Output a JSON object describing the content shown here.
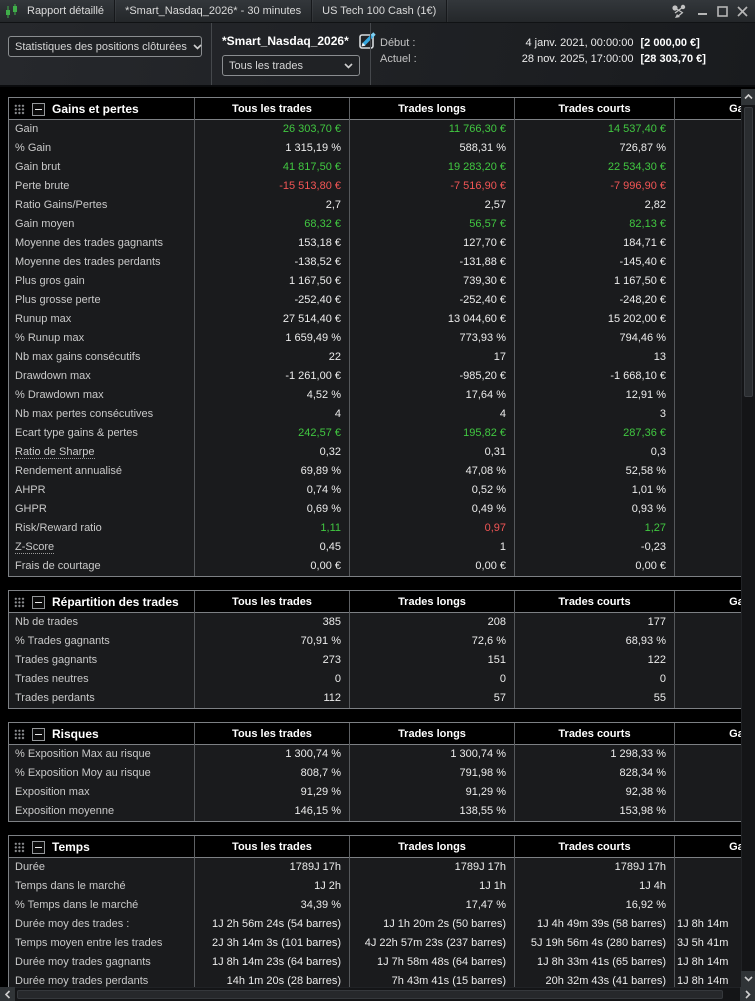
{
  "titlebar": {
    "tabs": [
      "Rapport détaillé",
      "*Smart_Nasdaq_2026* - 30 minutes",
      "US Tech 100 Cash (1€)"
    ]
  },
  "toolbar": {
    "stats_dropdown": "Statistiques des positions clôturées",
    "strategy_name": "*Smart_Nasdaq_2026*",
    "trades_dropdown": "Tous les trades",
    "start_label": "Début :",
    "start_date": "4 janv. 2021, 00:00:00",
    "start_equity": "[2 000,00 €]",
    "current_label": "Actuel :",
    "current_date": "28 nov. 2025, 17:00:00",
    "current_equity": "[28 303,70 €]"
  },
  "colors": {
    "positive": "#41c841",
    "negative": "#f25555",
    "accent_blue": "#35a8e0"
  },
  "columns": [
    "Tous les trades",
    "Trades longs",
    "Trades courts",
    "Gagnants"
  ],
  "tables": [
    {
      "title": "Gains et pertes",
      "rows": [
        {
          "label": "Gain",
          "cells": [
            {
              "t": "26 303,70 €",
              "c": "pos"
            },
            {
              "t": "11 766,30 €",
              "c": "pos"
            },
            {
              "t": "14 537,40 €",
              "c": "pos"
            },
            ""
          ]
        },
        {
          "label": "% Gain",
          "cells": [
            "1 315,19 %",
            "588,31 %",
            "726,87 %",
            ""
          ]
        },
        {
          "label": "Gain brut",
          "cells": [
            {
              "t": "41 817,50 €",
              "c": "pos"
            },
            {
              "t": "19 283,20 €",
              "c": "pos"
            },
            {
              "t": "22 534,30 €",
              "c": "pos"
            },
            ""
          ]
        },
        {
          "label": "Perte brute",
          "cells": [
            {
              "t": "-15 513,80 €",
              "c": "neg"
            },
            {
              "t": "-7 516,90 €",
              "c": "neg"
            },
            {
              "t": "-7 996,90 €",
              "c": "neg"
            },
            ""
          ]
        },
        {
          "label": "Ratio Gains/Pertes",
          "cells": [
            "2,7",
            "2,57",
            "2,82",
            ""
          ]
        },
        {
          "label": "Gain moyen",
          "cells": [
            {
              "t": "68,32 €",
              "c": "pos"
            },
            {
              "t": "56,57 €",
              "c": "pos"
            },
            {
              "t": "82,13 €",
              "c": "pos"
            },
            ""
          ]
        },
        {
          "label": "Moyenne des trades gagnants",
          "cells": [
            "153,18 €",
            "127,70 €",
            "184,71 €",
            ""
          ]
        },
        {
          "label": "Moyenne des trades perdants",
          "cells": [
            "-138,52 €",
            "-131,88 €",
            "-145,40 €",
            ""
          ]
        },
        {
          "label": "Plus gros gain",
          "cells": [
            "1 167,50 €",
            "739,30 €",
            "1 167,50 €",
            ""
          ]
        },
        {
          "label": "Plus grosse perte",
          "cells": [
            "-252,40 €",
            "-252,40 €",
            "-248,20 €",
            ""
          ]
        },
        {
          "label": "Runup max",
          "cells": [
            "27 514,40 €",
            "13 044,60 €",
            "15 202,00 €",
            ""
          ]
        },
        {
          "label": "% Runup max",
          "cells": [
            "1 659,49 %",
            "773,93 %",
            "794,46 %",
            ""
          ]
        },
        {
          "label": "Nb max gains consécutifs",
          "cells": [
            "22",
            "17",
            "13",
            ""
          ]
        },
        {
          "label": "Drawdown max",
          "cells": [
            "-1 261,00 €",
            "-985,20 €",
            "-1 668,10 €",
            ""
          ]
        },
        {
          "label": "% Drawdown max",
          "cells": [
            "4,52 %",
            "17,64 %",
            "12,91 %",
            ""
          ]
        },
        {
          "label": "Nb max pertes consécutives",
          "cells": [
            "4",
            "4",
            "3",
            ""
          ]
        },
        {
          "label": "Ecart type gains & pertes",
          "cells": [
            {
              "t": "242,57 €",
              "c": "pos"
            },
            {
              "t": "195,82 €",
              "c": "pos"
            },
            {
              "t": "287,36 €",
              "c": "pos"
            },
            ""
          ]
        },
        {
          "label": "Ratio de Sharpe",
          "u": true,
          "cells": [
            "0,32",
            "0,31",
            "0,3",
            ""
          ]
        },
        {
          "label": "Rendement annualisé",
          "cells": [
            "69,89 %",
            "47,08 %",
            "52,58 %",
            ""
          ]
        },
        {
          "label": "AHPR",
          "cells": [
            "0,74 %",
            "0,52 %",
            "1,01 %",
            ""
          ]
        },
        {
          "label": "GHPR",
          "cells": [
            "0,69 %",
            "0,49 %",
            "0,93 %",
            ""
          ]
        },
        {
          "label": "Risk/Reward ratio",
          "cells": [
            {
              "t": "1,11",
              "c": "pos"
            },
            {
              "t": "0,97",
              "c": "neg"
            },
            {
              "t": "1,27",
              "c": "pos"
            },
            ""
          ]
        },
        {
          "label": "Z-Score",
          "u": true,
          "cells": [
            "0,45",
            "1",
            "-0,23",
            ""
          ]
        },
        {
          "label": "Frais de courtage",
          "cells": [
            "0,00 €",
            "0,00 €",
            "0,00 €",
            ""
          ]
        }
      ]
    },
    {
      "title": "Répartition des trades",
      "rows": [
        {
          "label": "Nb de trades",
          "cells": [
            "385",
            "208",
            "177",
            ""
          ]
        },
        {
          "label": "% Trades gagnants",
          "cells": [
            "70,91 %",
            "72,6 %",
            "68,93 %",
            ""
          ]
        },
        {
          "label": "Trades gagnants",
          "cells": [
            "273",
            "151",
            "122",
            ""
          ]
        },
        {
          "label": "Trades neutres",
          "cells": [
            "0",
            "0",
            "0",
            ""
          ]
        },
        {
          "label": "Trades perdants",
          "cells": [
            "112",
            "57",
            "55",
            ""
          ]
        }
      ]
    },
    {
      "title": "Risques",
      "rows": [
        {
          "label": "% Exposition Max au risque",
          "cells": [
            "1 300,74 %",
            "1 300,74 %",
            "1 298,33 %",
            ""
          ]
        },
        {
          "label": "% Exposition Moy au risque",
          "cells": [
            "808,7 %",
            "791,98 %",
            "828,34 %",
            ""
          ]
        },
        {
          "label": "Exposition max",
          "cells": [
            "91,29 %",
            "91,29 %",
            "92,38 %",
            ""
          ]
        },
        {
          "label": "Exposition moyenne",
          "cells": [
            "146,15 %",
            "138,55 %",
            "153,98 %",
            ""
          ]
        }
      ]
    },
    {
      "title": "Temps",
      "rows": [
        {
          "label": "Durée",
          "cells": [
            "1789J 17h",
            "1789J 17h",
            "1789J 17h",
            ""
          ]
        },
        {
          "label": "Temps dans le marché",
          "cells": [
            "1J 2h",
            "1J 1h",
            "1J 4h",
            ""
          ]
        },
        {
          "label": "% Temps dans le marché",
          "cells": [
            "34,39 %",
            "17,47 %",
            "16,92 %",
            ""
          ]
        },
        {
          "label": "Durée moy des trades :",
          "cells": [
            "1J 2h 56m 24s (54 barres)",
            "1J 1h 20m 2s (50 barres)",
            "1J 4h 49m 39s (58 barres)",
            "1J 8h 14m"
          ]
        },
        {
          "label": "Temps moyen entre les trades",
          "cells": [
            "2J 3h 14m 3s (101 barres)",
            "4J 22h 57m 23s (237 barres)",
            "5J 19h 56m 4s (280 barres)",
            "3J 5h 41m"
          ]
        },
        {
          "label": "Durée moy trades gagnants",
          "cells": [
            "1J 8h 14m 23s (64 barres)",
            "1J 7h 58m 48s (64 barres)",
            "1J 8h 33m 41s (65 barres)",
            "1J 8h 14m"
          ]
        },
        {
          "label": "Durée moy trades perdants",
          "cells": [
            "14h 1m 20s (28 barres)",
            "7h 43m 41s (15 barres)",
            "20h 32m 43s (41 barres)",
            "1J 8h 14m"
          ]
        }
      ]
    }
  ]
}
